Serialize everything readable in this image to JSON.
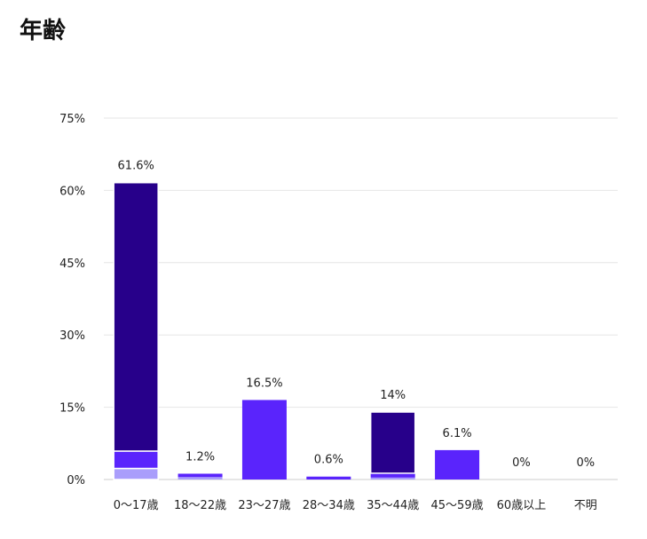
{
  "page": {
    "title": "年齢"
  },
  "chart_data": {
    "type": "bar",
    "stacked": true,
    "categories": [
      "0〜17歳",
      "18〜22歳",
      "23〜27歳",
      "28〜34歳",
      "35〜44歳",
      "45〜59歳",
      "60歳以上",
      "不明"
    ],
    "totals": [
      61.6,
      1.2,
      16.5,
      0.6,
      14,
      6.1,
      0,
      0
    ],
    "total_labels": [
      "61.6%",
      "1.2%",
      "16.5%",
      "0.6%",
      "14%",
      "6.1%",
      "0%",
      "0%"
    ],
    "segments": [
      [
        {
          "value": 2.3,
          "color": "#a99dfb"
        },
        {
          "value": 3.6,
          "color": "#5a24fc"
        },
        {
          "value": 55.7,
          "color": "#27008a"
        }
      ],
      [
        {
          "value": 0.5,
          "color": "#a99dfb"
        },
        {
          "value": 0.7,
          "color": "#5a24fc"
        }
      ],
      [
        {
          "value": 16.5,
          "color": "#5a24fc"
        }
      ],
      [
        {
          "value": 0.6,
          "color": "#5a24fc"
        }
      ],
      [
        {
          "value": 0.4,
          "color": "#a99dfb"
        },
        {
          "value": 0.9,
          "color": "#5a24fc"
        },
        {
          "value": 12.7,
          "color": "#27008a"
        }
      ],
      [
        {
          "value": 6.1,
          "color": "#5a24fc"
        }
      ],
      [],
      []
    ],
    "ylim": [
      0,
      75
    ],
    "yticks": [
      0,
      15,
      30,
      45,
      60,
      75
    ],
    "ytick_labels": [
      "0%",
      "15%",
      "30%",
      "45%",
      "60%",
      "75%"
    ],
    "grid": true,
    "colors": {
      "dark": "#27008a",
      "mid": "#5a24fc",
      "light": "#a99dfb",
      "grid": "#e6e6e6"
    }
  }
}
